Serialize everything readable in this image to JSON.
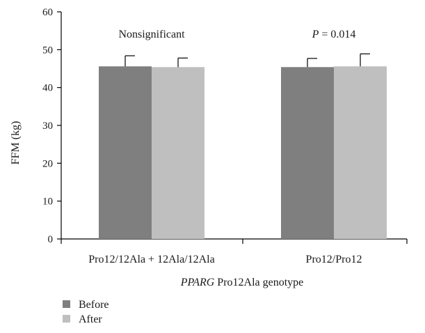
{
  "chart_data": {
    "type": "bar",
    "categories": [
      "Pro12/12Ala + 12Ala/12Ala",
      "Pro12/Pro12"
    ],
    "series": [
      {
        "name": "Before",
        "values": [
          45.6,
          45.4
        ],
        "error": [
          2.8,
          2.3
        ],
        "color": "#7f7f7f"
      },
      {
        "name": "After",
        "values": [
          45.4,
          45.6
        ],
        "error": [
          2.4,
          3.3
        ],
        "color": "#bfbfbf"
      }
    ],
    "annotations": [
      {
        "category": 0,
        "text": "Nonsignificant"
      },
      {
        "category": 1,
        "italic_text": "P",
        "text": " = 0.014"
      }
    ],
    "ylabel": "FFM (kg)",
    "xlabel_italic": "PPARG",
    "xlabel_rest": " Pro12Ala genotype",
    "ylim": [
      0,
      60
    ],
    "yticks": [
      0,
      10,
      20,
      30,
      40,
      50,
      60
    ],
    "grid": false,
    "legend_position": "bottom-left"
  }
}
